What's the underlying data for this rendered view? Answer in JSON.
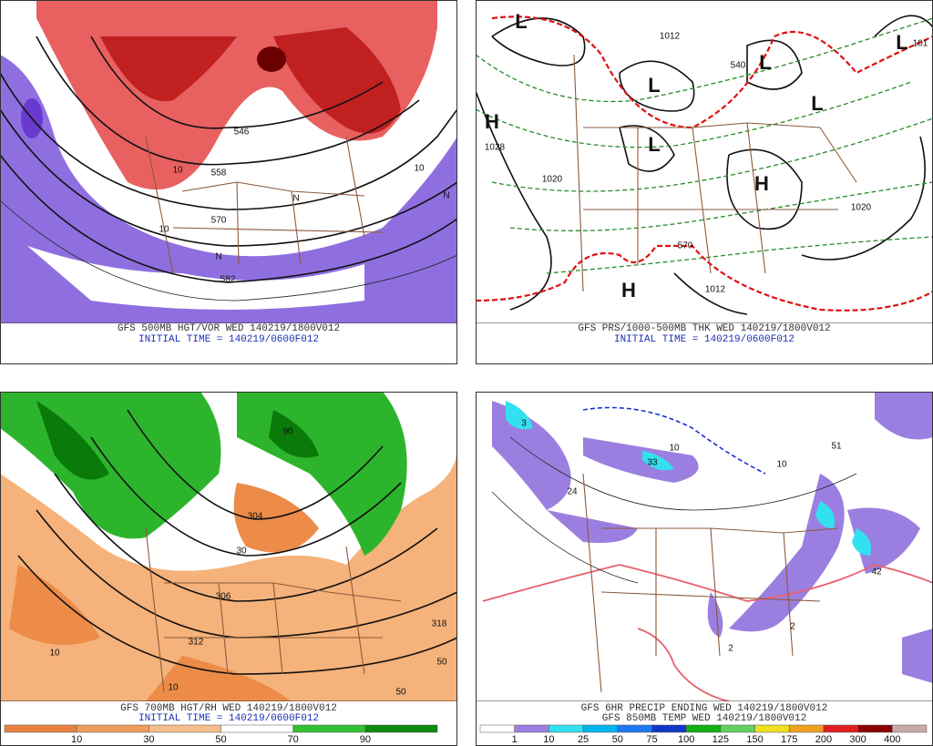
{
  "panels": [
    {
      "caption": "GFS 500MB HGT/VOR WED 140219/1800V012",
      "initial_time": "INITIAL TIME = 140219/0600F012",
      "map_labels": [
        "546",
        "558",
        "570",
        "582",
        "10",
        "10",
        "10",
        "N",
        "N",
        "N"
      ]
    },
    {
      "caption": "GFS PRS/1000-500MB THK WED 140219/1800V012",
      "initial_time": "INITIAL TIME = 140219/0600F012",
      "map_labels": [
        "L",
        "L",
        "L",
        "L",
        "L",
        "L",
        "H",
        "H",
        "H",
        "1012",
        "1028",
        "1020",
        "1020",
        "540",
        "570",
        "1012",
        "101"
      ]
    },
    {
      "caption": "GFS 700MB HGT/RH WED 140219/1800V012",
      "initial_time": "INITIAL TIME = 140219/0600F012",
      "map_labels": [
        "304",
        "306",
        "312",
        "318",
        "10",
        "10",
        "50",
        "50",
        "30",
        "90"
      ],
      "legend": {
        "labels": [
          10,
          30,
          50,
          70,
          90
        ],
        "colors": [
          "#e8803f",
          "#f09c5c",
          "#f5bd8c",
          "#ffffff",
          "#33c033",
          "#0d8a0d"
        ]
      }
    },
    {
      "caption": "GFS 6HR PRECIP ENDING WED 140219/1800V012",
      "subcaption": "GFS 850MB TEMP WED 140219/1800V012",
      "map_labels": [
        "3",
        "24",
        "33",
        "10",
        "10",
        "42",
        "2",
        "2",
        "51"
      ],
      "legend": {
        "labels": [
          1,
          10,
          25,
          50,
          75,
          100,
          125,
          150,
          175,
          200,
          300,
          400
        ],
        "colors": [
          "#ffffff",
          "#9b7fe0",
          "#33e0f0",
          "#00b4f0",
          "#1e78f0",
          "#1038c8",
          "#10b010",
          "#60d060",
          "#f0e020",
          "#f0a020",
          "#e02020",
          "#8b0000",
          "#c8a8a8"
        ]
      }
    }
  ]
}
